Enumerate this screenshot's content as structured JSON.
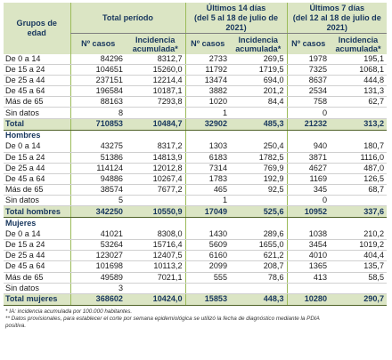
{
  "header": {
    "grupos_line1": "Grupos de",
    "grupos_line2": "edad",
    "total_periodo": "Total período",
    "ult14_line1": "Últimos 14 días",
    "ult14_line2": "(del 5 al 18 de julio de",
    "ult14_line3": "2021)",
    "ult7_line1": "Últimos 7 días",
    "ult7_line2": "(del 12 al 18 de julio de",
    "ult7_line3": "2021)",
    "n_casos": "Nº casos",
    "incidencia_l1": "Incidencia",
    "incidencia_l2": "acumulada*"
  },
  "overall": {
    "rows": [
      {
        "label": "De 0 a 14",
        "v": [
          "84296",
          "8312,7",
          "2733",
          "269,5",
          "1978",
          "195,1"
        ]
      },
      {
        "label": "De 15 a 24",
        "v": [
          "104651",
          "15260,0",
          "11792",
          "1719,5",
          "7325",
          "1068,1"
        ]
      },
      {
        "label": "De 25 a 44",
        "v": [
          "237151",
          "12214,4",
          "13474",
          "694,0",
          "8637",
          "444,8"
        ]
      },
      {
        "label": "De 45 a 64",
        "v": [
          "196584",
          "10187,1",
          "3882",
          "201,2",
          "2534",
          "131,3"
        ]
      },
      {
        "label": "Más de 65",
        "v": [
          "88163",
          "7293,8",
          "1020",
          "84,4",
          "758",
          "62,7"
        ]
      },
      {
        "label": "Sin datos",
        "v": [
          "8",
          "",
          "1",
          "",
          "0",
          ""
        ]
      }
    ],
    "total": {
      "label": "Total",
      "v": [
        "710853",
        "10484,7",
        "32902",
        "485,3",
        "21232",
        "313,2"
      ]
    }
  },
  "hombres": {
    "title": "Hombres",
    "rows": [
      {
        "label": "De 0 a 14",
        "v": [
          "43275",
          "8317,2",
          "1303",
          "250,4",
          "940",
          "180,7"
        ]
      },
      {
        "label": "De 15 a 24",
        "v": [
          "51386",
          "14813,9",
          "6183",
          "1782,5",
          "3871",
          "1116,0"
        ]
      },
      {
        "label": "De 25 a 44",
        "v": [
          "114124",
          "12012,8",
          "7314",
          "769,9",
          "4627",
          "487,0"
        ]
      },
      {
        "label": "De 45 a 64",
        "v": [
          "94886",
          "10267,4",
          "1783",
          "192,9",
          "1169",
          "126,5"
        ]
      },
      {
        "label": "Más de 65",
        "v": [
          "38574",
          "7677,2",
          "465",
          "92,5",
          "345",
          "68,7"
        ]
      },
      {
        "label": "Sin datos",
        "v": [
          "5",
          "",
          "1",
          "",
          "0",
          ""
        ]
      }
    ],
    "total": {
      "label": "Total  hombres",
      "v": [
        "342250",
        "10550,9",
        "17049",
        "525,6",
        "10952",
        "337,6"
      ]
    }
  },
  "mujeres": {
    "title": "Mujeres",
    "rows": [
      {
        "label": "De 0 a 14",
        "v": [
          "41021",
          "8308,0",
          "1430",
          "289,6",
          "1038",
          "210,2"
        ]
      },
      {
        "label": "De 15 a 24",
        "v": [
          "53264",
          "15716,4",
          "5609",
          "1655,0",
          "3454",
          "1019,2"
        ]
      },
      {
        "label": "De 25 a 44",
        "v": [
          "123027",
          "12407,5",
          "6160",
          "621,2",
          "4010",
          "404,4"
        ]
      },
      {
        "label": "De 45 a 64",
        "v": [
          "101698",
          "10113,2",
          "2099",
          "208,7",
          "1365",
          "135,7"
        ]
      },
      {
        "label": "Más de 65",
        "v": [
          "49589",
          "7021,1",
          "555",
          "78,6",
          "413",
          "58,5"
        ]
      },
      {
        "label": "Sin datos",
        "v": [
          "3",
          "",
          "",
          "",
          "",
          ""
        ]
      }
    ],
    "total": {
      "label": "Total mujeres",
      "v": [
        "368602",
        "10424,0",
        "15853",
        "448,3",
        "10280",
        "290,7"
      ]
    }
  },
  "footnotes": {
    "line1": "* IA: incidencia acumulada por 100.000 habitantes.",
    "line2": "** Datos provisionales, para establecer el corte por semana epidemiológica se utilizó la fecha de diagnóstico mediante la PDIA",
    "line3": "positiva."
  }
}
